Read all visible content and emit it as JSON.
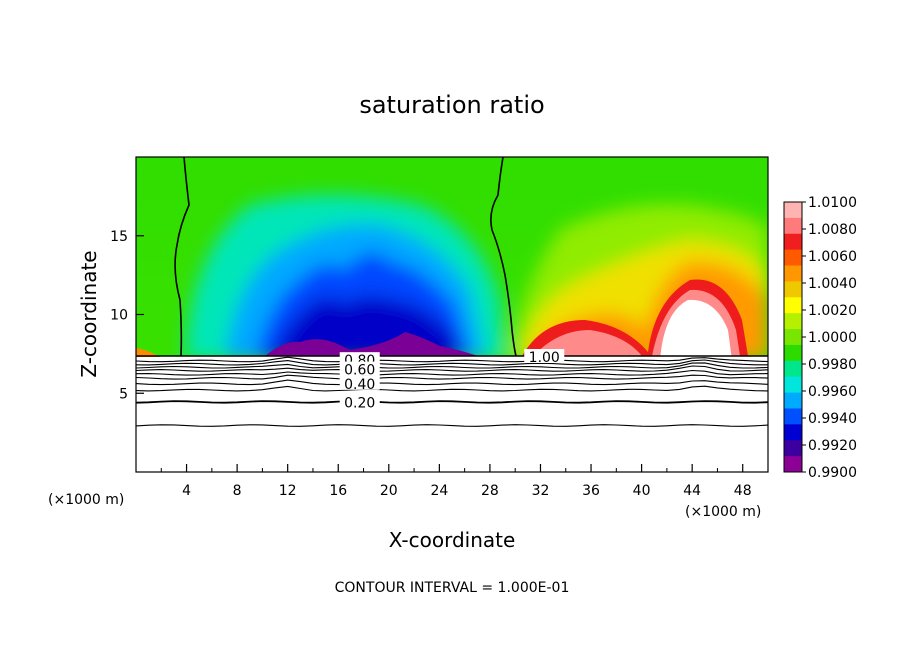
{
  "chart_data": {
    "type": "heatmap",
    "title": "saturation ratio",
    "xlabel": "X-coordinate",
    "ylabel": "Z-coordinate",
    "x_unit_left": "(×1000 m)",
    "x_unit_right": "(×1000 m)",
    "footer": "CONTOUR INTERVAL = 1.000E-01",
    "xlim": [
      0,
      50
    ],
    "ylim": [
      0,
      20
    ],
    "x_ticks": [
      4,
      8,
      12,
      16,
      20,
      24,
      28,
      32,
      36,
      40,
      44,
      48
    ],
    "y_ticks": [
      5,
      10,
      15
    ],
    "colorbar": {
      "levels": [
        "1.0100",
        "1.0080",
        "1.0060",
        "1.0040",
        "1.0020",
        "1.0000",
        "0.9980",
        "0.9960",
        "0.9940",
        "0.9920",
        "0.9900"
      ],
      "colors": [
        "#ffb4b4",
        "#ff7a7a",
        "#f01e1e",
        "#ff5a00",
        "#ff9800",
        "#f0c800",
        "#ffff00",
        "#b4f000",
        "#78e600",
        "#2cdc00",
        "#00e68c",
        "#00e6dc",
        "#00aaff",
        "#0050ff",
        "#0000d2",
        "#3c00a0",
        "#8c0096"
      ]
    },
    "contour_labels": [
      {
        "text": "1.00",
        "x": 32.3,
        "z": 7.3
      },
      {
        "text": "0.80",
        "x": 17.7,
        "z": 7.1
      },
      {
        "text": "0.60",
        "x": 17.7,
        "z": 6.5
      },
      {
        "text": "0.40",
        "x": 17.7,
        "z": 5.6
      },
      {
        "text": "0.20",
        "x": 17.7,
        "z": 4.4
      }
    ],
    "subsat_contours_z": [
      7.05,
      6.85,
      6.65,
      6.45,
      6.2,
      5.95,
      5.6,
      5.2,
      4.45,
      2.95
    ],
    "cloud_base_z": 7.3
  }
}
